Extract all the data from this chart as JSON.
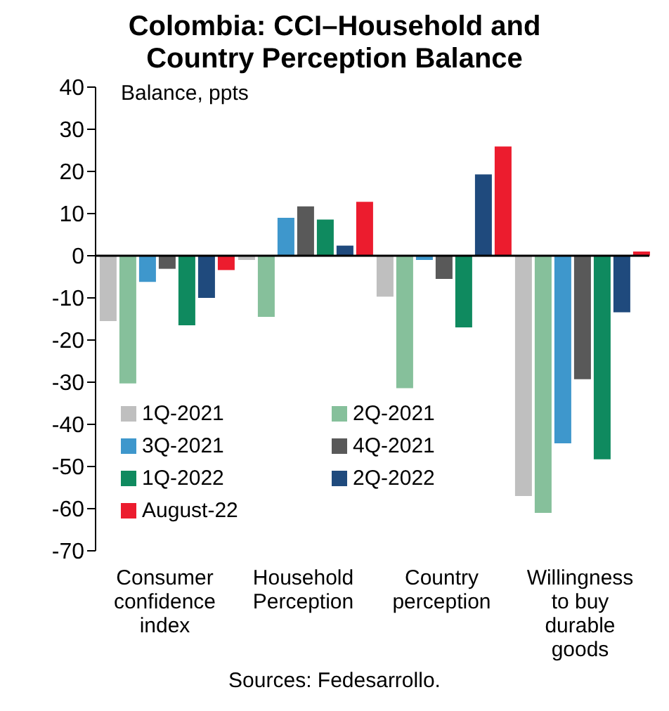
{
  "chart_data": {
    "type": "bar",
    "title": "Colombia: CCI–Household and Country Perception Balance",
    "ylabel": "Balance, ppts",
    "categories": [
      "Consumer confidence index",
      "Household Perception",
      "Country perception",
      "Willingness to buy durable goods"
    ],
    "series": [
      {
        "name": "1Q-2021",
        "color": "#bfbfbf",
        "values": [
          -15.5,
          -1,
          -9.7,
          -57
        ]
      },
      {
        "name": "2Q-2021",
        "color": "#86c09b",
        "values": [
          -30.3,
          -14.5,
          -31.4,
          -61
        ]
      },
      {
        "name": "3Q-2021",
        "color": "#3e97cc",
        "values": [
          -6.2,
          9,
          -1,
          -44.5
        ]
      },
      {
        "name": "4Q-2021",
        "color": "#595959",
        "values": [
          -3.1,
          11.7,
          -5.5,
          -29.3
        ]
      },
      {
        "name": "1Q-2022",
        "color": "#0f8a5f",
        "values": [
          -16.5,
          8.6,
          -17,
          -48.3
        ]
      },
      {
        "name": "2Q-2022",
        "color": "#1f4a7d",
        "values": [
          -10,
          2.4,
          19.3,
          -13.4
        ]
      },
      {
        "name": "August-22",
        "color": "#ec1c2e",
        "values": [
          -3.4,
          12.8,
          25.9,
          1
        ]
      }
    ],
    "ref_lines": [
      {
        "axis": "y",
        "value": 0,
        "color": "#000000"
      }
    ],
    "ylim": [
      -70,
      40
    ],
    "yticks": [
      -70,
      -60,
      -50,
      -40,
      -30,
      -20,
      -10,
      0,
      10,
      20,
      30,
      40
    ],
    "grid": false,
    "legend": "bottom left",
    "annotations": [
      "Sources: Fedesarrollo."
    ]
  }
}
